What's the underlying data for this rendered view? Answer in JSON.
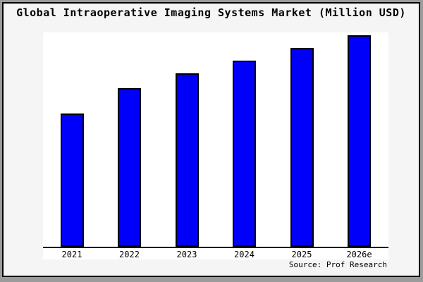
{
  "figure": {
    "title": "Global Intraoperative Imaging Systems Market (Million USD)",
    "source": "Source: Prof Research"
  },
  "colors": {
    "page_shadow": "#9B9B9B",
    "figure_bg": "#F5F5F5",
    "figure_border": "#000000",
    "plot_bg": "#FFFFFF",
    "bar_fill": "#0000FA",
    "bar_border": "#000000",
    "axis": "#000000",
    "text": "#000000"
  },
  "chart_data": {
    "type": "bar",
    "title": "Global Intraoperative Imaging Systems Market (Million USD)",
    "categories": [
      "2021",
      "2022",
      "2023",
      "2024",
      "2025",
      "2026e"
    ],
    "values": [
      63,
      75,
      82,
      88,
      94,
      100
    ],
    "value_note": "relative units estimated from bar heights; no y-axis scale shown",
    "xlabel": "",
    "ylabel": "",
    "ylim": [
      0,
      101.5
    ],
    "grid": false,
    "legend": null,
    "source": "Source: Prof Research"
  }
}
